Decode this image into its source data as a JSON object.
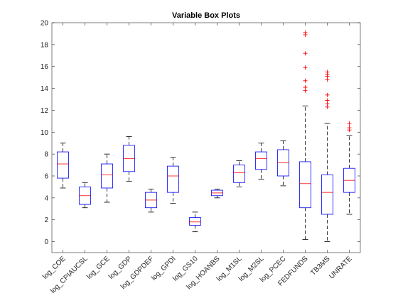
{
  "chart_data": {
    "type": "boxplot",
    "title": "Variable Box Plots",
    "xlabel": "",
    "ylabel": "",
    "ylim": [
      -1,
      20
    ],
    "yticks": [
      0,
      2,
      4,
      6,
      8,
      10,
      12,
      14,
      16,
      18,
      20
    ],
    "grid": false,
    "legend": "none",
    "colors": {
      "box": "#0000ff",
      "median": "#ff0000",
      "whisker": "#000000",
      "outlier": "#ff0000",
      "axes": "#262626"
    },
    "series": [
      {
        "name": "log_COE",
        "whisker_low": 4.9,
        "q1": 5.8,
        "median": 7.1,
        "q3": 8.2,
        "whisker_high": 9.0,
        "outliers": []
      },
      {
        "name": "log_CPIAUCSL",
        "whisker_low": 3.1,
        "q1": 3.4,
        "median": 4.2,
        "q3": 5.0,
        "whisker_high": 5.4,
        "outliers": []
      },
      {
        "name": "log_GCE",
        "whisker_low": 3.6,
        "q1": 4.9,
        "median": 6.1,
        "q3": 7.1,
        "whisker_high": 8.0,
        "outliers": []
      },
      {
        "name": "log_GDP",
        "whisker_low": 5.5,
        "q1": 6.4,
        "median": 7.6,
        "q3": 8.8,
        "whisker_high": 9.6,
        "outliers": []
      },
      {
        "name": "log_GDPDEF",
        "whisker_low": 2.7,
        "q1": 3.1,
        "median": 3.8,
        "q3": 4.5,
        "whisker_high": 4.8,
        "outliers": []
      },
      {
        "name": "log_GPDI",
        "whisker_low": 3.5,
        "q1": 4.5,
        "median": 6.0,
        "q3": 6.9,
        "whisker_high": 7.7,
        "outliers": []
      },
      {
        "name": "log_GS10",
        "whisker_low": 0.9,
        "q1": 1.5,
        "median": 1.8,
        "q3": 2.2,
        "whisker_high": 2.7,
        "outliers": []
      },
      {
        "name": "log_HOANBS",
        "whisker_low": 4.0,
        "q1": 4.2,
        "median": 4.45,
        "q3": 4.7,
        "whisker_high": 4.8,
        "outliers": []
      },
      {
        "name": "log_M1SL",
        "whisker_low": 5.0,
        "q1": 5.4,
        "median": 6.3,
        "q3": 7.0,
        "whisker_high": 7.4,
        "outliers": []
      },
      {
        "name": "log_M2SL",
        "whisker_low": 5.7,
        "q1": 6.6,
        "median": 7.6,
        "q3": 8.2,
        "whisker_high": 9.0,
        "outliers": []
      },
      {
        "name": "log_PCEC",
        "whisker_low": 5.1,
        "q1": 6.0,
        "median": 7.2,
        "q3": 8.4,
        "whisker_high": 9.2,
        "outliers": []
      },
      {
        "name": "FEDFUNDS",
        "whisker_low": 0.2,
        "q1": 3.1,
        "median": 5.3,
        "q3": 7.3,
        "whisker_high": 12.4,
        "outliers": [
          13.8,
          14.1,
          14.7,
          15.9,
          17.2,
          18.9,
          19.1
        ]
      },
      {
        "name": "TB3MS",
        "whisker_low": 0.0,
        "q1": 2.5,
        "median": 4.5,
        "q3": 6.1,
        "whisker_high": 10.8,
        "outliers": [
          12.3,
          12.6,
          12.9,
          13.4,
          14.8,
          15.1,
          15.3,
          15.5
        ]
      },
      {
        "name": "UNRATE",
        "whisker_low": 2.5,
        "q1": 4.5,
        "median": 5.6,
        "q3": 6.7,
        "whisker_high": 9.7,
        "outliers": [
          10.2,
          10.4,
          10.8
        ]
      }
    ]
  }
}
